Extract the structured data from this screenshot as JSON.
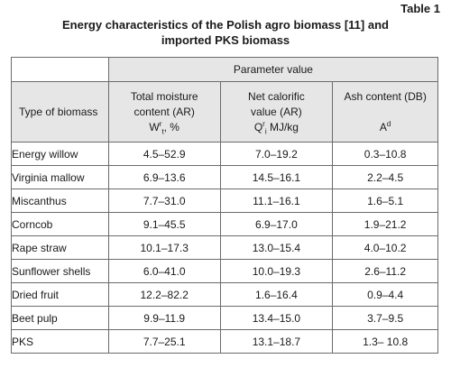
{
  "table_number": "Table 1",
  "caption_line1": "Energy characteristics of the Polish agro biomass [11] and",
  "caption_line2": "imported PKS biomass",
  "header": {
    "group": "Parameter value",
    "type_col": "Type of biomass",
    "moisture": {
      "line1": "Total moisture",
      "line2": "content (AR)",
      "sym": "W",
      "sup": "r",
      "sub": "t",
      "unit": ", %"
    },
    "calorific": {
      "line1": "Net calorific",
      "line2": "value (AR)",
      "sym": "Q",
      "sup": "r",
      "sub": "i",
      "unit": " MJ/kg"
    },
    "ash": {
      "line1": "Ash content (DB)",
      "sym": "A",
      "sup": "d"
    }
  },
  "rows": [
    {
      "type": "Energy willow",
      "moisture": "4.5–52.9",
      "calorific": "7.0–19.2",
      "ash": "0.3–10.8"
    },
    {
      "type": "Virginia mallow",
      "moisture": "6.9–13.6",
      "calorific": "14.5–16.1",
      "ash": "2.2–4.5"
    },
    {
      "type": "Miscanthus",
      "moisture": "7.7–31.0",
      "calorific": "11.1–16.1",
      "ash": "1.6–5.1"
    },
    {
      "type": "Corncob",
      "moisture": "9.1–45.5",
      "calorific": "6.9–17.0",
      "ash": "1.9–21.2"
    },
    {
      "type": "Rape straw",
      "moisture": "10.1–17.3",
      "calorific": "13.0–15.4",
      "ash": "4.0–10.2"
    },
    {
      "type": "Sunflower shells",
      "moisture": "6.0–41.0",
      "calorific": "10.0–19.3",
      "ash": "2.6–11.2"
    },
    {
      "type": "Dried fruit",
      "moisture": "12.2–82.2",
      "calorific": "1.6–16.4",
      "ash": "0.9–4.4"
    },
    {
      "type": "Beet pulp",
      "moisture": "9.9–11.9",
      "calorific": "13.4–15.0",
      "ash": "3.7–9.5"
    },
    {
      "type": "PKS",
      "moisture": "7.7–25.1",
      "calorific": "13.1–18.7",
      "ash": "1.3– 10.8"
    }
  ]
}
